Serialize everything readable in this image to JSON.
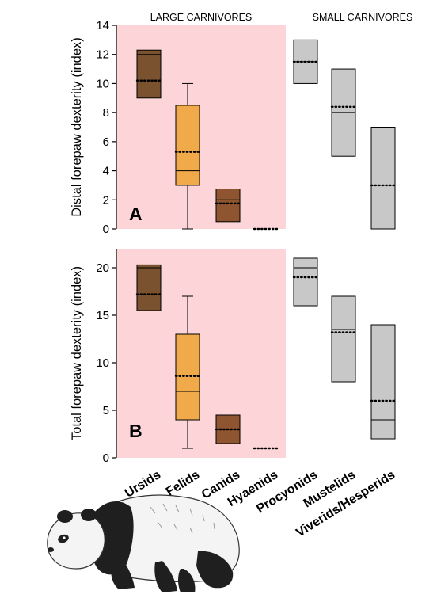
{
  "chart_data": {
    "type": "box",
    "categories": [
      "Ursids",
      "Felids",
      "Canids",
      "Hyaenids",
      "Procyonids",
      "Mustelids",
      "Viverids/Hesperids"
    ],
    "groups": [
      {
        "title": "LARGE CARNIVORES",
        "categories": [
          "Ursids",
          "Felids",
          "Canids",
          "Hyaenids"
        ],
        "background": "#fdd5d8"
      },
      {
        "title": "SMALL CARNIVORES",
        "categories": [
          "Procyonids",
          "Mustelids",
          "Viverids/Hesperids"
        ],
        "background": "#ffffff"
      }
    ],
    "colors": {
      "Ursids": "#7a5230",
      "Felids": "#f0aa4a",
      "Canids": "#8e5530",
      "Hyaenids": "#8e5530",
      "Procyonids": "#c8c8c8",
      "Mustelids": "#c8c8c8",
      "Viverids/Hesperids": "#c8c8c8"
    },
    "panels": [
      {
        "label": "A",
        "ylabel": "Distal forepaw dexterity (index)",
        "ylim": [
          0,
          14
        ],
        "yticks": [
          "0",
          "2",
          "4",
          "6",
          "8",
          "10",
          "12",
          "14"
        ],
        "boxes": [
          {
            "category": "Ursids",
            "q1": 9,
            "median": 12,
            "q3": 12.3,
            "mean": 10.2
          },
          {
            "category": "Felids",
            "q1": 3,
            "median": 4,
            "q3": 8.5,
            "mean": 5.3,
            "whisker_low": 0,
            "whisker_high": 10
          },
          {
            "category": "Canids",
            "q1": 0.5,
            "median": 2,
            "q3": 2.75,
            "mean": 1.75
          },
          {
            "category": "Hyaenids",
            "q1": 0,
            "median": 0,
            "q3": 0,
            "mean": 0
          },
          {
            "category": "Procyonids",
            "q1": 10,
            "median": 11.5,
            "q3": 13,
            "mean": 11.5
          },
          {
            "category": "Mustelids",
            "q1": 5,
            "median": 8,
            "q3": 11,
            "mean": 8.4
          },
          {
            "category": "Viverids/Hesperids",
            "q1": 0,
            "median": 3,
            "q3": 7,
            "mean": 3
          }
        ]
      },
      {
        "label": "B",
        "ylabel": "Total forepaw dexterity (index)",
        "ylim": [
          0,
          22
        ],
        "yticks": [
          "0",
          "5",
          "10",
          "15",
          "20"
        ],
        "boxes": [
          {
            "category": "Ursids",
            "q1": 15.5,
            "median": 20,
            "q3": 20.3,
            "mean": 17.2
          },
          {
            "category": "Felids",
            "q1": 4,
            "median": 7,
            "q3": 13,
            "mean": 8.6,
            "whisker_low": 1,
            "whisker_high": 17
          },
          {
            "category": "Canids",
            "q1": 1.5,
            "median": 3,
            "q3": 4.5,
            "mean": 3
          },
          {
            "category": "Hyaenids",
            "q1": 1,
            "median": 1,
            "q3": 1,
            "mean": 1
          },
          {
            "category": "Procyonids",
            "q1": 16,
            "median": 20,
            "q3": 21,
            "mean": 19
          },
          {
            "category": "Mustelids",
            "q1": 8,
            "median": 13.5,
            "q3": 17,
            "mean": 13.2
          },
          {
            "category": "Viverids/Hesperids",
            "q1": 2,
            "median": 4,
            "q3": 14,
            "mean": 6
          }
        ]
      }
    ]
  }
}
